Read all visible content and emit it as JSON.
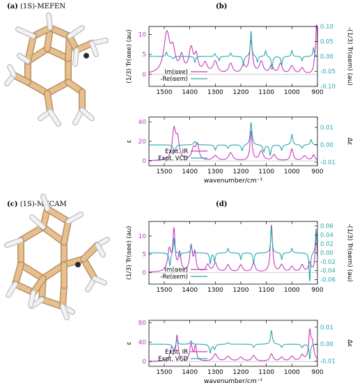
{
  "panels": {
    "a": {
      "letter": "(a)",
      "title": "(1S)-MEFEN"
    },
    "b": {
      "letter": "(b)"
    },
    "c": {
      "letter": "(c)",
      "title": "(1S)-MECAM"
    },
    "d": {
      "letter": "(d)"
    }
  },
  "colors": {
    "magenta": "#c43ac0",
    "teal": "#2aa7a8",
    "dark_teal": "#1f6f6c",
    "stick_tan": "#e8c08f",
    "stick_shadow": "#b89064",
    "hydrogen": "#f2f2f2",
    "carbon_dark": "#2a2a2a"
  },
  "chart_data": [
    {
      "id": "b-top",
      "type": "line",
      "xlim": [
        1560,
        900
      ],
      "xticks": [
        1500,
        1400,
        1300,
        1200,
        1100,
        1000,
        900
      ],
      "ylabel": "(1/3) Tr(αee) (au)",
      "ylabel2": "-(1/3) Tr(αem) (au)",
      "ylim": [
        -3,
        12
      ],
      "yticks": [
        0,
        5,
        10
      ],
      "ylim2": [
        -0.1,
        0.1
      ],
      "yticks2": [
        -0.1,
        -0.05,
        0.0,
        0.05,
        0.1
      ],
      "legend": [
        "Im(αee)",
        "-Re(αem)"
      ],
      "series": [
        {
          "name": "Im(αee)",
          "axis": "left",
          "color": "magenta",
          "baseline": 0,
          "peaks": [
            [
              1490,
              10,
              14
            ],
            [
              1466,
              5,
              10
            ],
            [
              1432,
              4,
              9
            ],
            [
              1395,
              6,
              10
            ],
            [
              1375,
              4,
              8
            ],
            [
              1340,
              2.5,
              10
            ],
            [
              1300,
              3,
              10
            ],
            [
              1240,
              2.5,
              9
            ],
            [
              1190,
              2,
              8
            ],
            [
              1160,
              8,
              7
            ],
            [
              1120,
              3,
              9
            ],
            [
              1080,
              2,
              8
            ],
            [
              1045,
              2.5,
              8
            ],
            [
              1000,
              2,
              9
            ],
            [
              960,
              1.5,
              8
            ],
            [
              910,
              3,
              5
            ],
            [
              903,
              14,
              3
            ]
          ]
        },
        {
          "name": "-Re(αem)",
          "axis": "right",
          "color": "teal",
          "baseline": 0,
          "peaks": [
            [
              1492,
              0.015,
              3
            ],
            [
              1465,
              -0.008,
              4
            ],
            [
              1380,
              -0.02,
              3
            ],
            [
              1302,
              0.01,
              3
            ],
            [
              1285,
              -0.015,
              3
            ],
            [
              1240,
              0.012,
              3
            ],
            [
              1190,
              -0.03,
              3
            ],
            [
              1160,
              0.085,
              3
            ],
            [
              1135,
              -0.02,
              3
            ],
            [
              1103,
              0.02,
              3
            ],
            [
              1078,
              -0.045,
              3
            ],
            [
              1040,
              -0.03,
              3
            ],
            [
              1000,
              0.02,
              3
            ],
            [
              960,
              -0.015,
              3
            ],
            [
              915,
              0.03,
              3
            ]
          ]
        }
      ]
    },
    {
      "id": "b-bottom",
      "type": "line",
      "xlim": [
        1560,
        900
      ],
      "xticks": [
        1500,
        1400,
        1300,
        1200,
        1100,
        1000,
        900
      ],
      "xlabel": "wavenumber/cm⁻¹",
      "ylabel": "ε",
      "ylabel2": "Δε",
      "ylim": [
        -5,
        45
      ],
      "yticks": [
        0,
        20,
        40
      ],
      "ylim2": [
        -0.012,
        0.016
      ],
      "yticks2": [
        -0.01,
        0.0,
        0.01
      ],
      "legend": [
        "Expt. IR",
        "Expt. VCD"
      ],
      "series": [
        {
          "name": "Expt. IR",
          "axis": "left",
          "color": "magenta",
          "baseline": 0,
          "peaks": [
            [
              1462,
              30,
              8
            ],
            [
              1448,
              20,
              8
            ],
            [
              1385,
              12,
              9
            ],
            [
              1370,
              15,
              7
            ],
            [
              1300,
              5,
              10
            ],
            [
              1240,
              8,
              9
            ],
            [
              1160,
              30,
              5
            ],
            [
              1120,
              10,
              9
            ],
            [
              1070,
              6,
              8
            ],
            [
              1000,
              12,
              6
            ],
            [
              950,
              5,
              10
            ],
            [
              915,
              6,
              6
            ]
          ]
        },
        {
          "name": "Expt. VCD",
          "axis": "right",
          "color": "teal",
          "baseline": 0,
          "peaks": [
            [
              1460,
              -0.004,
              5
            ],
            [
              1380,
              0.002,
              5
            ],
            [
              1300,
              -0.003,
              4
            ],
            [
              1250,
              -0.002,
              4
            ],
            [
              1195,
              -0.0035,
              4
            ],
            [
              1160,
              0.013,
              4
            ],
            [
              1110,
              -0.004,
              4
            ],
            [
              1085,
              -0.006,
              4
            ],
            [
              1040,
              -0.003,
              4
            ],
            [
              1000,
              0.006,
              4
            ],
            [
              960,
              -0.002,
              4
            ],
            [
              925,
              0.003,
              4
            ]
          ]
        }
      ]
    },
    {
      "id": "d-top",
      "type": "line",
      "xlim": [
        1560,
        900
      ],
      "xticks": [
        1500,
        1400,
        1300,
        1200,
        1100,
        1000,
        900
      ],
      "ylabel": "(1/3) Tr(αee) (au)",
      "ylabel2": "-(1/3) Tr(αem) (au)",
      "ylim": [
        -3.2,
        14
      ],
      "yticks": [
        0,
        5,
        10
      ],
      "ylim2": [
        -0.07,
        0.07
      ],
      "yticks2": [
        -0.06,
        -0.04,
        -0.02,
        0.0,
        0.02,
        0.04,
        0.06
      ],
      "legend": [
        "Im(αee)",
        "-Re(αem)"
      ],
      "series": [
        {
          "name": "Im(αee)",
          "axis": "left",
          "color": "magenta",
          "baseline": 0,
          "peaks": [
            [
              1480,
              6,
              8
            ],
            [
              1462,
              11,
              5
            ],
            [
              1440,
              5,
              6
            ],
            [
              1395,
              7,
              6
            ],
            [
              1380,
              5,
              5
            ],
            [
              1330,
              2,
              8
            ],
            [
              1300,
              2.5,
              8
            ],
            [
              1250,
              2,
              8
            ],
            [
              1200,
              2,
              8
            ],
            [
              1150,
              2.5,
              7
            ],
            [
              1080,
              13,
              5
            ],
            [
              1040,
              2,
              8
            ],
            [
              1000,
              1.5,
              8
            ],
            [
              960,
              2,
              7
            ],
            [
              930,
              2.5,
              6
            ],
            [
              905,
              11,
              4
            ]
          ]
        },
        {
          "name": "-Re(αem)",
          "axis": "right",
          "color": "teal",
          "baseline": 0,
          "peaks": [
            [
              1478,
              -0.03,
              4
            ],
            [
              1462,
              0.035,
              3
            ],
            [
              1438,
              -0.01,
              3
            ],
            [
              1395,
              0.015,
              3
            ],
            [
              1320,
              -0.025,
              3
            ],
            [
              1303,
              -0.02,
              3
            ],
            [
              1250,
              0.01,
              3
            ],
            [
              1200,
              -0.015,
              3
            ],
            [
              1150,
              -0.025,
              3
            ],
            [
              1080,
              0.06,
              3
            ],
            [
              1040,
              -0.015,
              3
            ],
            [
              1000,
              0.01,
              3
            ],
            [
              930,
              -0.065,
              3
            ],
            [
              905,
              0.055,
              3
            ]
          ]
        }
      ]
    },
    {
      "id": "d-bottom",
      "type": "line",
      "xlim": [
        1560,
        900
      ],
      "xticks": [
        1500,
        1400,
        1300,
        1200,
        1100,
        1000,
        900
      ],
      "xlabel": "wavenumber/cm⁻¹",
      "ylabel": "ε",
      "ylabel2": "Δε",
      "ylim": [
        -10,
        85
      ],
      "yticks": [
        0,
        40,
        80
      ],
      "ylim2": [
        -0.013,
        0.014
      ],
      "yticks2": [
        -0.01,
        0.0,
        0.01
      ],
      "legend": [
        "Expt. IR",
        "Expt. VCD"
      ],
      "series": [
        {
          "name": "Expt. IR",
          "axis": "left",
          "color": "magenta",
          "baseline": 0,
          "peaks": [
            [
              1470,
              28,
              8
            ],
            [
              1450,
              50,
              5
            ],
            [
              1395,
              35,
              6
            ],
            [
              1378,
              30,
              5
            ],
            [
              1300,
              15,
              9
            ],
            [
              1250,
              10,
              10
            ],
            [
              1200,
              8,
              10
            ],
            [
              1150,
              12,
              8
            ],
            [
              1080,
              15,
              7
            ],
            [
              1040,
              8,
              8
            ],
            [
              1000,
              10,
              8
            ],
            [
              960,
              12,
              8
            ],
            [
              930,
              55,
              5
            ],
            [
              920,
              35,
              7
            ]
          ]
        },
        {
          "name": "Expt. VCD",
          "axis": "right",
          "color": "teal",
          "baseline": 0,
          "peaks": [
            [
              1462,
              -0.004,
              5
            ],
            [
              1450,
              0.003,
              4
            ],
            [
              1395,
              0.002,
              4
            ],
            [
              1320,
              -0.005,
              4
            ],
            [
              1303,
              -0.003,
              4
            ],
            [
              1250,
              0.001,
              4
            ],
            [
              1150,
              -0.002,
              4
            ],
            [
              1080,
              0.008,
              4
            ],
            [
              1040,
              -0.002,
              4
            ],
            [
              960,
              -0.002,
              4
            ],
            [
              930,
              -0.009,
              3
            ]
          ]
        }
      ]
    }
  ]
}
